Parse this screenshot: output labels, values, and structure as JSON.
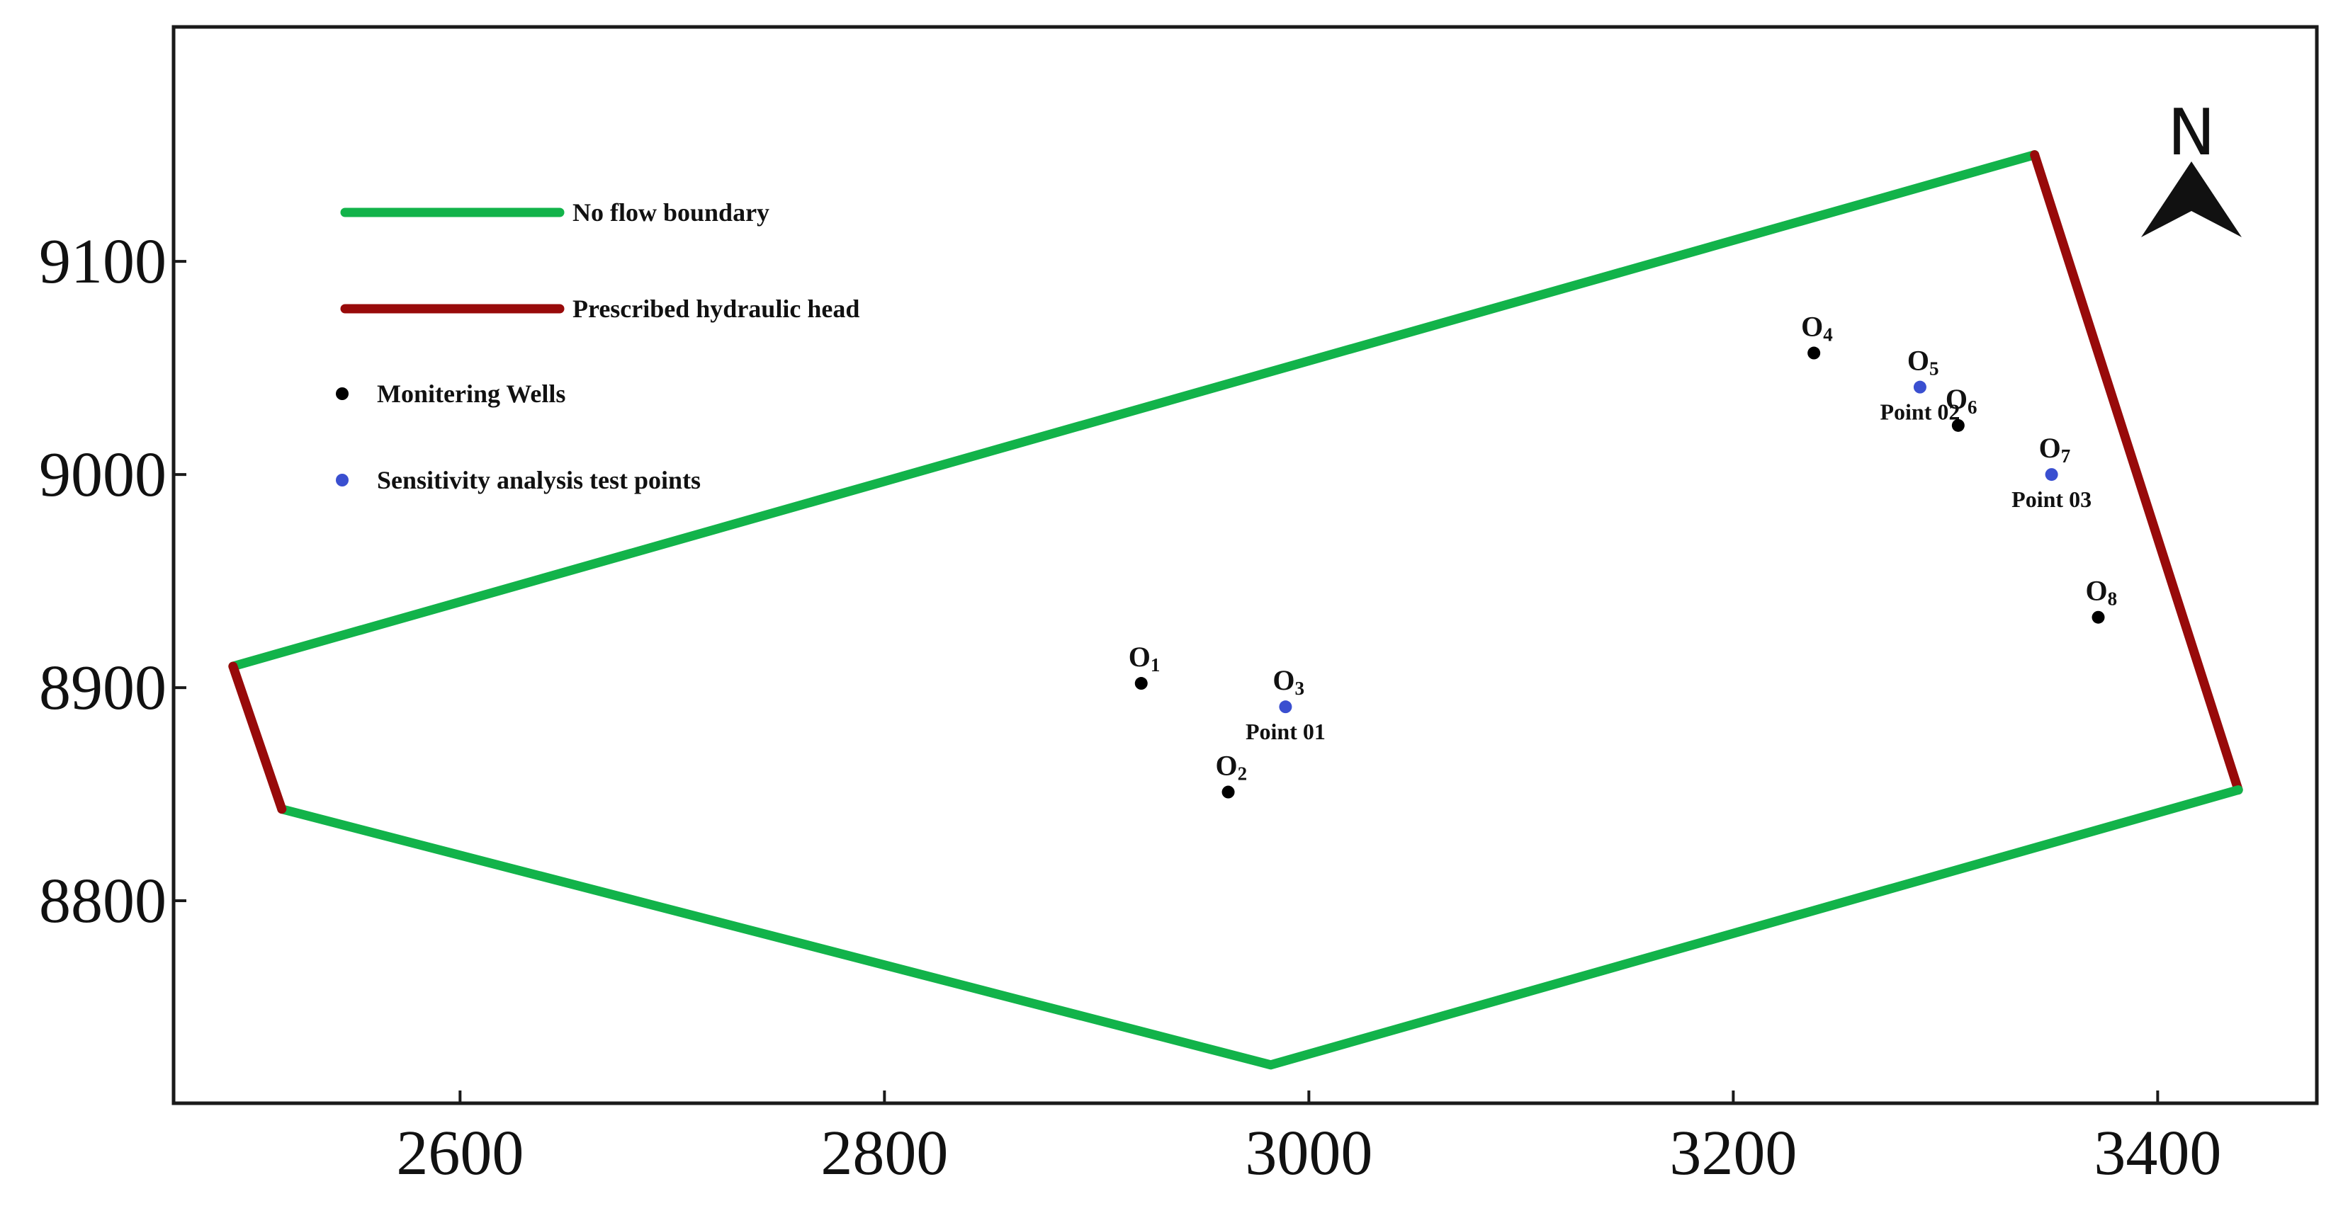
{
  "map": {
    "x_ticks": [
      2600,
      2800,
      3000,
      3200,
      3400
    ],
    "y_ticks": [
      8800,
      8900,
      9000,
      9100
    ],
    "xlim": [
      2465,
      3475
    ],
    "ylim": [
      8705,
      9210
    ],
    "north_label": "N",
    "colors": {
      "no_flow": "#12b34a",
      "head": "#980a0a",
      "well": "#000000",
      "test_point": "#3a4fd0",
      "frame": "#1a1a1a"
    },
    "legend": [
      {
        "label": "No flow boundary",
        "symbol": "line",
        "color": "#12b34a"
      },
      {
        "label": "Prescribed hydraulic head",
        "symbol": "line",
        "color": "#980a0a"
      },
      {
        "label": "Monitering Wells",
        "symbol": "dot",
        "color": "#000000"
      },
      {
        "label": "Sensitivity analysis test points",
        "symbol": "dot",
        "color": "#3a4fd0"
      }
    ],
    "boundary_segments": [
      {
        "type": "no_flow",
        "points": [
          [
            2493,
            8910
          ],
          [
            3342,
            9150
          ]
        ]
      },
      {
        "type": "head",
        "points": [
          [
            3342,
            9150
          ],
          [
            3438,
            8852
          ]
        ]
      },
      {
        "type": "no_flow",
        "points": [
          [
            3438,
            8852
          ],
          [
            2982,
            8723
          ],
          [
            2516,
            8843
          ]
        ]
      },
      {
        "type": "head",
        "points": [
          [
            2516,
            8843
          ],
          [
            2493,
            8910
          ]
        ]
      }
    ],
    "wells": [
      {
        "name": "O",
        "sub": "1",
        "x": 2921,
        "y": 8902,
        "type": "well"
      },
      {
        "name": "O",
        "sub": "2",
        "x": 2962,
        "y": 8851,
        "type": "well"
      },
      {
        "name": "O",
        "sub": "3",
        "x": 2989,
        "y": 8891,
        "type": "test",
        "point_label": "Point 01"
      },
      {
        "name": "O",
        "sub": "4",
        "x": 3238,
        "y": 9057,
        "type": "well"
      },
      {
        "name": "O",
        "sub": "5",
        "x": 3288,
        "y": 9041,
        "type": "test",
        "point_label": "Point 02"
      },
      {
        "name": "O",
        "sub": "6",
        "x": 3306,
        "y": 9023,
        "type": "well"
      },
      {
        "name": "O",
        "sub": "7",
        "x": 3350,
        "y": 9000,
        "type": "test",
        "point_label": "Point 03"
      },
      {
        "name": "O",
        "sub": "8",
        "x": 3372,
        "y": 8933,
        "type": "well"
      }
    ]
  }
}
